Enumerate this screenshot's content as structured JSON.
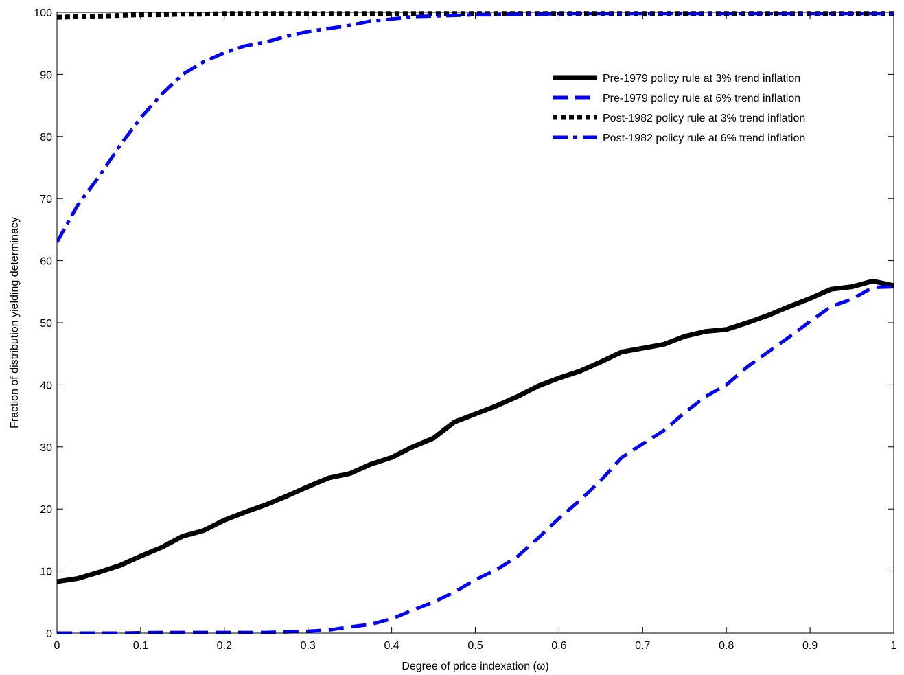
{
  "chart_data": {
    "type": "line",
    "title": "",
    "xlabel": "Degree of price indexation (ω)",
    "ylabel": "Fraction of distribution yielding determinacy",
    "xlim": [
      0,
      1
    ],
    "ylim": [
      0,
      100
    ],
    "xticks": [
      "0",
      "0.1",
      "0.2",
      "0.3",
      "0.4",
      "0.5",
      "0.6",
      "0.7",
      "0.8",
      "0.9",
      "1"
    ],
    "yticks": [
      "0",
      "10",
      "20",
      "30",
      "40",
      "50",
      "60",
      "70",
      "80",
      "90",
      "100"
    ],
    "grid": false,
    "legend_position": "top-right",
    "x": [
      0,
      0.025,
      0.05,
      0.075,
      0.1,
      0.125,
      0.15,
      0.175,
      0.2,
      0.225,
      0.25,
      0.275,
      0.3,
      0.325,
      0.35,
      0.375,
      0.4,
      0.425,
      0.45,
      0.475,
      0.5,
      0.525,
      0.55,
      0.575,
      0.6,
      0.625,
      0.65,
      0.675,
      0.7,
      0.725,
      0.75,
      0.775,
      0.8,
      0.825,
      0.85,
      0.875,
      0.9,
      0.925,
      0.95,
      0.975,
      1
    ],
    "series": [
      {
        "name": "Pre-1979 policy rule at 3% trend inflation",
        "color": "#000000",
        "style": "solid",
        "values": [
          8.3,
          8.8,
          9.8,
          10.9,
          12.4,
          13.8,
          15.6,
          16.5,
          18.2,
          19.5,
          20.7,
          22.1,
          23.6,
          25.0,
          25.7,
          27.2,
          28.3,
          30.0,
          31.4,
          34.0,
          35.3,
          36.6,
          38.1,
          39.8,
          41.1,
          42.2,
          43.7,
          45.3,
          45.9,
          46.5,
          47.8,
          48.6,
          48.9,
          50.0,
          51.2,
          52.6,
          53.9,
          55.4,
          55.8,
          56.7,
          56.0
        ]
      },
      {
        "name": "Pre-1979 policy rule at 6% trend inflation",
        "color": "#0000ff",
        "style": "dashed",
        "values": [
          0,
          0,
          0,
          0,
          0.05,
          0.1,
          0.1,
          0.1,
          0.1,
          0.1,
          0.1,
          0.2,
          0.3,
          0.5,
          1.0,
          1.4,
          2.3,
          3.7,
          5.0,
          6.6,
          8.6,
          10.2,
          12.3,
          15.3,
          18.5,
          21.4,
          24.6,
          28.3,
          30.5,
          32.6,
          35.5,
          38.1,
          40.0,
          42.9,
          45.3,
          47.7,
          50.2,
          52.6,
          53.8,
          55.7,
          55.8
        ]
      },
      {
        "name": "Post-1982 policy rule at 3% trend inflation",
        "color": "#000000",
        "style": "dotted",
        "values": [
          99.2,
          99.3,
          99.4,
          99.5,
          99.6,
          99.6,
          99.7,
          99.7,
          99.8,
          99.8,
          99.8,
          99.8,
          99.8,
          99.8,
          99.8,
          99.8,
          99.8,
          99.8,
          99.8,
          99.8,
          99.8,
          99.8,
          99.8,
          99.8,
          99.8,
          99.8,
          99.8,
          99.8,
          99.8,
          99.8,
          99.8,
          99.8,
          99.8,
          99.8,
          99.8,
          99.8,
          99.8,
          99.8,
          99.8,
          99.8,
          99.8
        ]
      },
      {
        "name": "Post-1982 policy rule at 6% trend inflation",
        "color": "#0000ff",
        "style": "dashdot",
        "values": [
          63.0,
          69.0,
          73.5,
          78.5,
          83.0,
          86.8,
          90.0,
          92.0,
          93.5,
          94.6,
          95.2,
          96.2,
          96.9,
          97.4,
          97.9,
          98.6,
          98.9,
          99.3,
          99.4,
          99.5,
          99.6,
          99.6,
          99.7,
          99.7,
          99.8,
          99.8,
          99.8,
          99.8,
          99.8,
          99.8,
          99.8,
          99.8,
          99.8,
          99.8,
          99.8,
          99.8,
          99.8,
          99.8,
          99.8,
          99.8,
          99.8
        ]
      }
    ]
  }
}
